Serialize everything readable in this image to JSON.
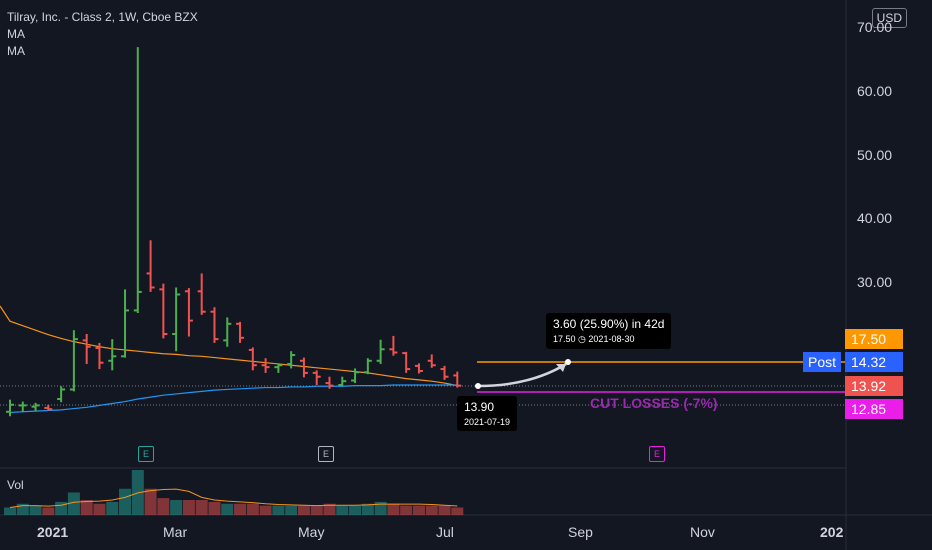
{
  "legend": {
    "symbol_line": "Tilray, Inc. - Class 2, 1W, Cboe BZX",
    "ma1": "MA",
    "ma2": "MA",
    "volume": "Vol"
  },
  "currency": "USD",
  "colors": {
    "up": "#26a69a",
    "up_candle": "#4caf50",
    "down": "#ef5350",
    "ma_orange": "#f7931a",
    "ma_blue": "#2196f3",
    "target": "#ff9800",
    "stop": "#e91ee8",
    "post_bg": "#2962ff"
  },
  "price_tags": {
    "target": "17.50",
    "post": "14.32",
    "post_label": "Post",
    "last": "13.92",
    "stop": "12.85"
  },
  "projection": {
    "change_text": "3.60 (25.90%) in 42d",
    "target_text": "17.50",
    "target_date": "2021-08-30",
    "entry_price": "13.90",
    "entry_date": "2021-07-19",
    "cut_losses": "CUT LOSSES (-7%)"
  },
  "events": [
    {
      "label": "E",
      "color": "#26a69a"
    },
    {
      "label": "E",
      "color": "#b2b5be"
    },
    {
      "label": "E",
      "color": "#e91ee8"
    }
  ],
  "chart_data": {
    "type": "ohlc",
    "title": "Tilray, Inc. - Class 2, 1W, Cboe BZX",
    "y_ticks": [
      30,
      40,
      50,
      60,
      70
    ],
    "y_tick_labels": [
      "30.00",
      "40.00",
      "50.00",
      "60.00",
      "70.00"
    ],
    "x_ticks": [
      "2021",
      "Mar",
      "May",
      "Jul",
      "Sep",
      "Nov",
      "202"
    ],
    "ylim": [
      8.5,
      72
    ],
    "bars": [
      {
        "o": 9.8,
        "h": 11.7,
        "l": 9.1,
        "c": 10.9
      },
      {
        "o": 10.8,
        "h": 11.4,
        "l": 9.8,
        "c": 10.8
      },
      {
        "o": 10.6,
        "h": 11.2,
        "l": 9.9,
        "c": 10.8
      },
      {
        "o": 10.4,
        "h": 10.9,
        "l": 10.0,
        "c": 10.2
      },
      {
        "o": 11.8,
        "h": 13.8,
        "l": 11.3,
        "c": 13.3
      },
      {
        "o": 13.3,
        "h": 22.6,
        "l": 13.0,
        "c": 21.2
      },
      {
        "o": 21.0,
        "h": 22.0,
        "l": 17.3,
        "c": 20.0
      },
      {
        "o": 19.8,
        "h": 20.6,
        "l": 16.5,
        "c": 17.5
      },
      {
        "o": 17.8,
        "h": 21.2,
        "l": 16.3,
        "c": 18.5
      },
      {
        "o": 18.5,
        "h": 29.0,
        "l": 18.3,
        "c": 25.7
      },
      {
        "o": 25.7,
        "h": 67.0,
        "l": 25.3,
        "c": 28.6
      },
      {
        "o": 31.5,
        "h": 36.7,
        "l": 28.6,
        "c": 29.3
      },
      {
        "o": 29.0,
        "h": 29.9,
        "l": 21.3,
        "c": 22.0
      },
      {
        "o": 22.0,
        "h": 29.3,
        "l": 19.3,
        "c": 28.2
      },
      {
        "o": 28.7,
        "h": 29.2,
        "l": 21.6,
        "c": 24.1
      },
      {
        "o": 28.7,
        "h": 31.5,
        "l": 25.0,
        "c": 25.5
      },
      {
        "o": 25.5,
        "h": 26.2,
        "l": 20.6,
        "c": 21.2
      },
      {
        "o": 21.0,
        "h": 24.6,
        "l": 20.0,
        "c": 23.6
      },
      {
        "o": 23.6,
        "h": 23.9,
        "l": 20.6,
        "c": 21.4
      },
      {
        "o": 19.5,
        "h": 19.9,
        "l": 16.3,
        "c": 17.1
      },
      {
        "o": 17.1,
        "h": 18.2,
        "l": 15.9,
        "c": 16.8
      },
      {
        "o": 16.8,
        "h": 17.4,
        "l": 15.9,
        "c": 17.1
      },
      {
        "o": 17.3,
        "h": 19.3,
        "l": 16.6,
        "c": 18.7
      },
      {
        "o": 17.8,
        "h": 18.3,
        "l": 15.2,
        "c": 15.9
      },
      {
        "o": 15.9,
        "h": 16.3,
        "l": 14.0,
        "c": 15.3
      },
      {
        "o": 14.3,
        "h": 15.3,
        "l": 13.4,
        "c": 13.9
      },
      {
        "o": 14.0,
        "h": 15.3,
        "l": 13.8,
        "c": 14.6
      },
      {
        "o": 14.7,
        "h": 16.6,
        "l": 14.3,
        "c": 16.0
      },
      {
        "o": 16.0,
        "h": 18.2,
        "l": 15.7,
        "c": 17.8
      },
      {
        "o": 17.8,
        "h": 21.1,
        "l": 17.3,
        "c": 19.6
      },
      {
        "o": 19.6,
        "h": 21.7,
        "l": 18.6,
        "c": 19.1
      },
      {
        "o": 19.0,
        "h": 19.2,
        "l": 15.9,
        "c": 16.5
      },
      {
        "o": 17.0,
        "h": 17.4,
        "l": 15.8,
        "c": 16.2
      },
      {
        "o": 17.8,
        "h": 18.8,
        "l": 16.7,
        "c": 17.1
      },
      {
        "o": 16.5,
        "h": 17.0,
        "l": 14.8,
        "c": 15.3
      },
      {
        "o": 15.5,
        "h": 16.1,
        "l": 13.6,
        "c": 13.9
      }
    ],
    "ma_orange": [
      24.0,
      23.3,
      22.6,
      21.9,
      21.3,
      20.8,
      20.4,
      20.0,
      19.7,
      19.5,
      19.3,
      19.1,
      18.9,
      18.8,
      18.6,
      18.5,
      18.3,
      18.1,
      17.9,
      17.7,
      17.5,
      17.3,
      17.1,
      16.9,
      16.7,
      16.5,
      16.3,
      16.1,
      15.9,
      15.6,
      15.3,
      15.0,
      14.8,
      14.6,
      14.3,
      13.9
    ],
    "ma_blue": [
      9.7,
      9.8,
      9.9,
      10.0,
      10.1,
      10.3,
      10.5,
      10.8,
      11.1,
      11.4,
      11.8,
      12.1,
      12.4,
      12.6,
      12.8,
      13.0,
      13.2,
      13.3,
      13.4,
      13.5,
      13.6,
      13.6,
      13.7,
      13.7,
      13.8,
      13.8,
      13.8,
      13.9,
      13.9,
      13.9,
      14.0,
      14.0,
      14.0,
      14.0,
      14.0,
      14.0
    ],
    "volume": [
      4,
      6,
      5,
      4,
      7,
      12,
      8,
      6,
      7,
      14,
      24,
      14,
      9,
      8,
      8,
      8,
      7,
      6,
      6,
      6,
      5,
      5,
      5,
      5,
      5,
      6,
      5,
      5,
      6,
      7,
      6,
      5,
      5,
      5,
      5,
      4
    ],
    "target_price": 17.5,
    "post_price": 14.32,
    "last_price": 13.92,
    "stop_price": 12.85,
    "entry_price": 13.9
  }
}
